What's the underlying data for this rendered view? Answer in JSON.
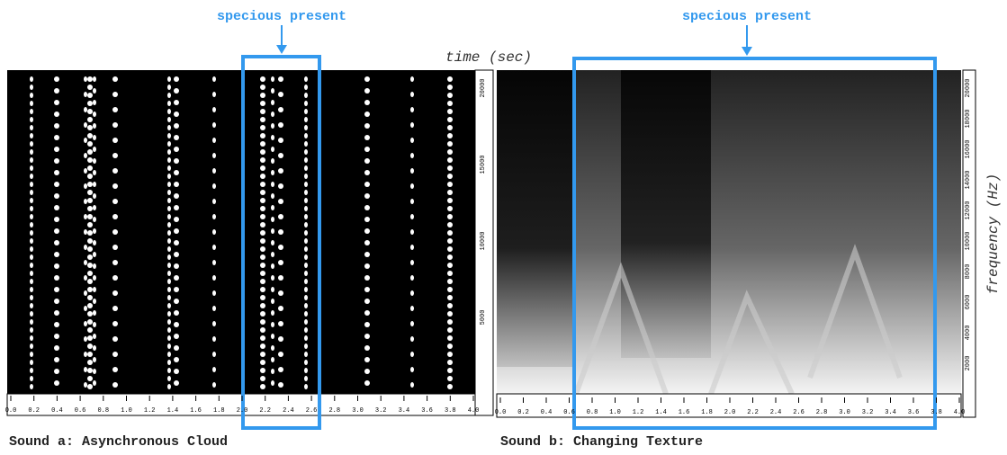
{
  "annotations": {
    "left_label": "specious present",
    "right_label": "specious present"
  },
  "axis_labels": {
    "time": "time (sec)",
    "frequency": "frequency (Hz)"
  },
  "panels": [
    {
      "caption": "Sound a: Asynchronous Cloud",
      "x_ticks": [
        "0.0",
        "0.2",
        "0.4",
        "0.6",
        "0.8",
        "1.0",
        "1.2",
        "1.4",
        "1.6",
        "1.8",
        "2.0",
        "2.2",
        "2.4",
        "2.6",
        "2.8",
        "3.0",
        "3.2",
        "3.4",
        "3.6",
        "3.8",
        "4.0"
      ],
      "y_ticks": [
        "5000",
        "10000",
        "15000",
        "20000"
      ]
    },
    {
      "caption": "Sound b: Changing Texture",
      "x_ticks": [
        "0.0",
        "0.2",
        "0.4",
        "0.6",
        "0.8",
        "1.0",
        "1.2",
        "1.4",
        "1.6",
        "1.8",
        "2.0",
        "2.2",
        "2.4",
        "2.6",
        "2.8",
        "3.0",
        "3.2",
        "3.4",
        "3.6",
        "3.8",
        "4.0"
      ],
      "y_ticks": [
        "2000",
        "4000",
        "6000",
        "8000",
        "10000",
        "12000",
        "14000",
        "16000",
        "18000",
        "20000"
      ]
    }
  ]
}
